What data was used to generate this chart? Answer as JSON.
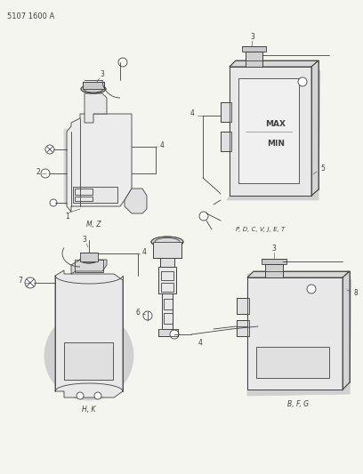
{
  "title": "5107 1600 A",
  "bg_color": "#f5f5f0",
  "lc": "#404040",
  "lw": 0.6,
  "fig_width": 4.08,
  "fig_height": 5.33,
  "dpi": 100,
  "captions": {
    "top_left": "M, Z",
    "top_right": "P, D, C, V, J, E, T",
    "bottom_left": "H, K",
    "bottom_right": "B, F, G"
  },
  "header": "5107 1600 A",
  "gray": "#888888",
  "shadow": "#cccccc"
}
